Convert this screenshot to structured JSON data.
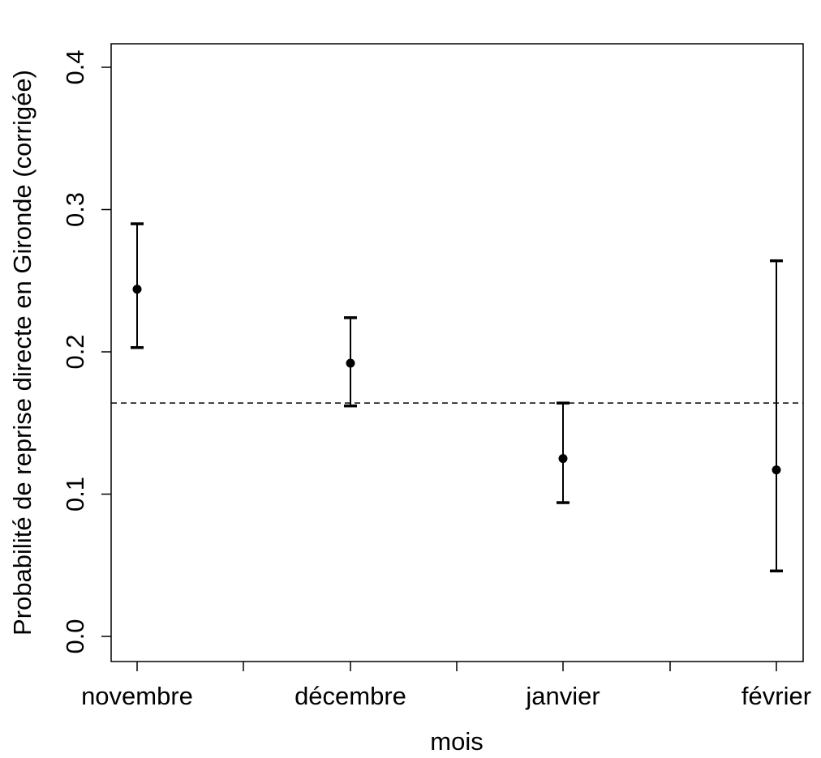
{
  "chart_data": {
    "type": "scatter",
    "title": "",
    "xlabel": "mois",
    "ylabel": "Probabilité de reprise directe en Gironde (corrigée)",
    "categories": [
      "novembre",
      "décembre",
      "janvier",
      "février"
    ],
    "series": [
      {
        "values": [
          0.244,
          0.192,
          0.125,
          0.117
        ],
        "lower": [
          0.203,
          0.162,
          0.094,
          0.046
        ],
        "upper": [
          0.29,
          0.224,
          0.164,
          0.264
        ]
      }
    ],
    "reference_line": {
      "y": 0.164,
      "style": "dashed"
    },
    "ylim": [
      0.0,
      0.4
    ],
    "yticks": [
      "0.0",
      "0.1",
      "0.2",
      "0.3",
      "0.4"
    ],
    "grid": false,
    "legend": "none"
  }
}
